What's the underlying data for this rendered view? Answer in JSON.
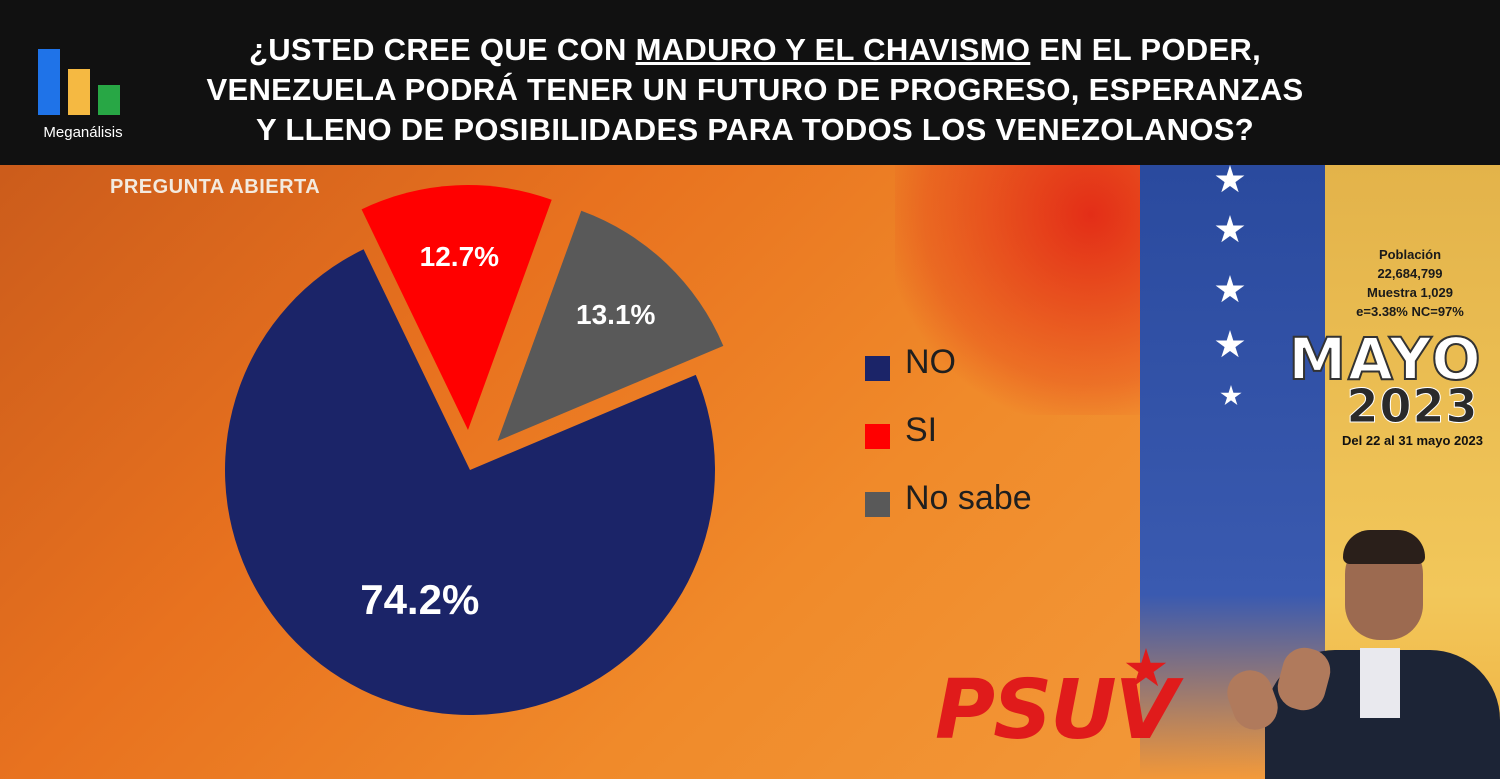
{
  "header": {
    "logo_text": "Meganálisis",
    "title_lines": [
      [
        "¿USTED CREE QUE CON ",
        "MADURO Y EL CHAVISMO",
        " EN EL PODER,"
      ],
      "VENEZUELA PODRÁ TENER UN FUTURO DE PROGRESO, ESPERANZAS",
      "Y LLENO DE POSIBILIDADES PARA TODOS LOS VENEZOLANOS?"
    ]
  },
  "subtitle": "PREGUNTA ABIERTA",
  "info": {
    "lines": [
      "Población",
      "22,684,799",
      "Muestra 1,029",
      "e=3.38%  NC=97%"
    ],
    "month": "MAYO",
    "year": "2023",
    "dates": "Del 22 al 31 mayo 2023"
  },
  "branding": {
    "party": "PSUV"
  },
  "colors": {
    "no": "#1b2468",
    "si": "#ff0000",
    "no_sabe": "#595959",
    "label": "#ffffff"
  },
  "chart_data": {
    "type": "pie",
    "slices": [
      {
        "name": "NO",
        "value": 74.2,
        "label": "74.2%",
        "color": "#1b2468"
      },
      {
        "name": "SI",
        "value": 12.7,
        "label": "12.7%",
        "color": "#ff0000"
      },
      {
        "name": "No sabe",
        "value": 13.1,
        "label": "13.1%",
        "color": "#595959"
      }
    ],
    "legend_position": "right",
    "exploded": true
  }
}
